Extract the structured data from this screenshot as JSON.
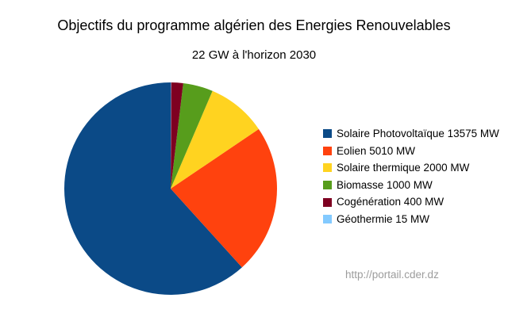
{
  "title": "Objectifs du programme algérien des Energies Renouvelables",
  "subtitle": "22 GW à l'horizon 2030",
  "source_url": "http://portail.cder.dz",
  "chart_data": {
    "type": "pie",
    "title": "Objectifs du programme algérien des Energies Renouvelables",
    "subtitle": "22 GW à l'horizon 2030",
    "unit": "MW",
    "total_value_mw": 22000,
    "start_angle_deg": 90,
    "direction": "counterclockwise",
    "legend_position": "right",
    "slices": [
      {
        "label": "Solaire Photovoltaïque",
        "value": 13575,
        "percent": 61.7,
        "color": "#0b4a87",
        "legend_text": "Solaire Photovoltaïque 13575 MW"
      },
      {
        "label": "Eolien",
        "value": 5010,
        "percent": 22.8,
        "color": "#ff420e",
        "legend_text": "Eolien 5010 MW"
      },
      {
        "label": "Solaire thermique",
        "value": 2000,
        "percent": 9.1,
        "color": "#ffd320",
        "legend_text": "Solaire thermique 2000 MW"
      },
      {
        "label": "Biomasse",
        "value": 1000,
        "percent": 4.5,
        "color": "#579d1c",
        "legend_text": "Biomasse 1000 MW"
      },
      {
        "label": "Cogénération",
        "value": 400,
        "percent": 1.8,
        "color": "#7e0021",
        "legend_text": "Cogénération 400 MW"
      },
      {
        "label": "Géothermie",
        "value": 15,
        "percent": 0.07,
        "color": "#83caff",
        "legend_text": "Géothermie 15 MW"
      }
    ]
  }
}
